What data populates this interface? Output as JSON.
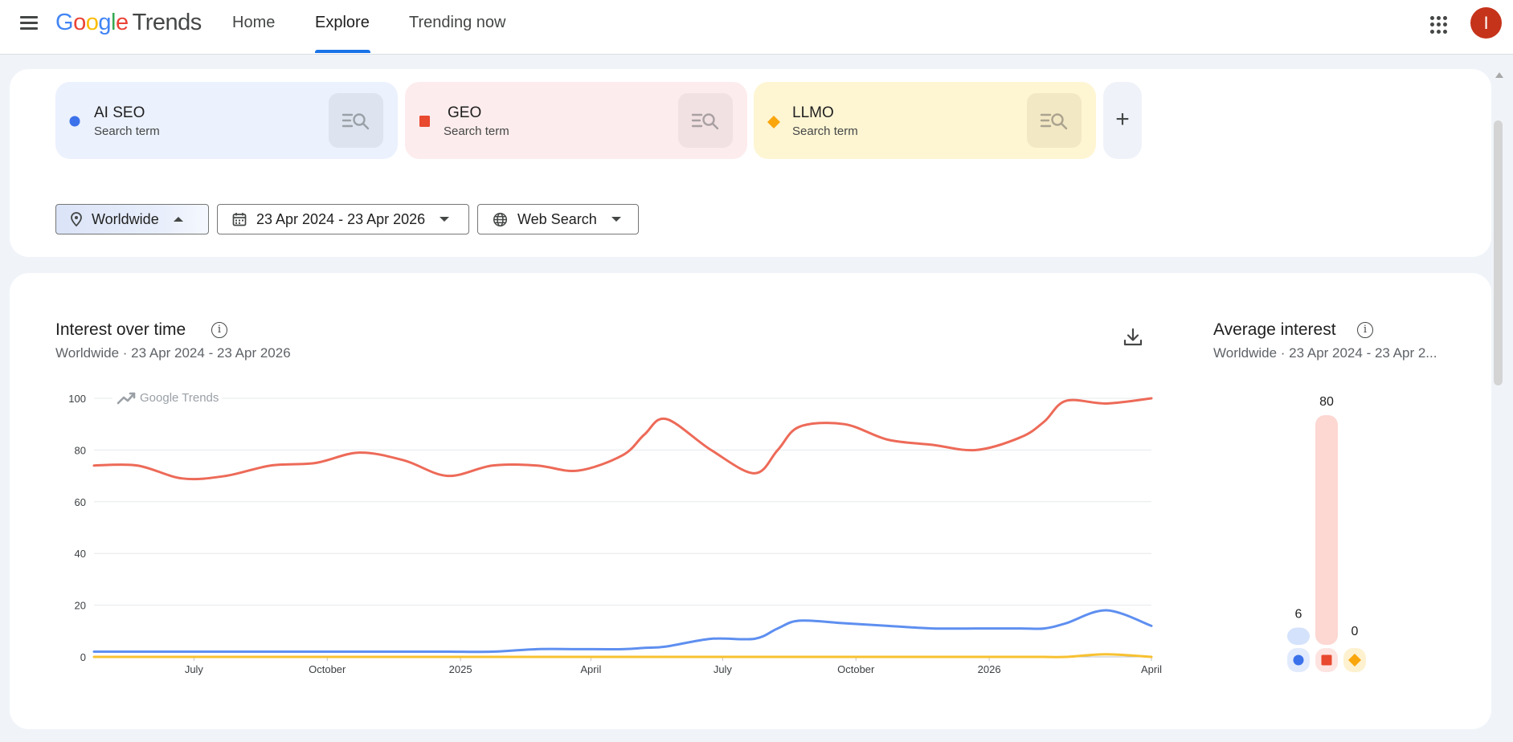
{
  "header": {
    "logo_google": "Google",
    "logo_product": "Trends",
    "tabs": [
      {
        "label": "Home",
        "active": false
      },
      {
        "label": "Explore",
        "active": true
      },
      {
        "label": "Trending now",
        "active": false
      }
    ],
    "avatar_letter": "I",
    "accent_color": "#1a73e8"
  },
  "terms": [
    {
      "name": "AI SEO",
      "type": "Search term",
      "color": "#3b71ea",
      "marker": "circle"
    },
    {
      "name": "GEO",
      "type": "Search term",
      "color": "#e8492f",
      "marker": "square"
    },
    {
      "name": "LLMO",
      "type": "Search term",
      "color": "#f9a50c",
      "marker": "diamond"
    }
  ],
  "add_term_label": "+",
  "filters": {
    "region": "Worldwide",
    "date_range": "23 Apr 2024 - 23 Apr 2026",
    "property": "Web Search"
  },
  "interest_over_time": {
    "title": "Interest over time",
    "subtitle": "Worldwide  ·  23 Apr 2024 - 23 Apr 2026",
    "watermark": "Google Trends"
  },
  "average_interest": {
    "title": "Average interest",
    "subtitle": "Worldwide  ·  23 Apr 2024 - 23 Apr 2...",
    "values": [
      6,
      80,
      0
    ]
  },
  "chart_data": [
    {
      "type": "line",
      "ylim": [
        0,
        100
      ],
      "y_ticks": [
        0,
        20,
        40,
        60,
        80,
        100
      ],
      "x_ticks": [
        "July",
        "October",
        "2025",
        "April",
        "July",
        "October",
        "2026",
        "April"
      ],
      "x": [
        "2024-04-23",
        "2024-05-23",
        "2024-06-23",
        "2024-07-23",
        "2024-08-23",
        "2024-09-23",
        "2024-10-23",
        "2024-11-23",
        "2024-12-23",
        "2025-01-23",
        "2025-02-23",
        "2025-03-23",
        "2025-04-23",
        "2025-05-08",
        "2025-05-23",
        "2025-06-23",
        "2025-07-23",
        "2025-08-08",
        "2025-08-23",
        "2025-09-23",
        "2025-10-23",
        "2025-11-23",
        "2025-12-23",
        "2026-01-23",
        "2026-02-08",
        "2026-02-23",
        "2026-03-23",
        "2026-04-23"
      ],
      "series": [
        {
          "name": "AI SEO",
          "color": "#5e8ff0",
          "values": [
            2,
            2,
            2,
            2,
            2,
            2,
            2,
            2,
            2,
            2,
            3,
            3,
            3,
            3.5,
            4,
            7,
            7,
            11,
            14,
            13,
            12,
            11,
            11,
            11,
            11,
            13,
            18,
            12
          ]
        },
        {
          "name": "GEO",
          "color": "#ed6a58",
          "values": [
            74,
            74,
            69,
            70,
            74,
            75,
            79,
            76,
            70,
            74,
            74,
            72,
            78,
            86,
            92,
            80,
            71,
            80,
            89,
            90,
            84,
            82,
            80,
            85,
            91,
            99,
            98,
            100
          ]
        },
        {
          "name": "LLMO",
          "color": "#f7c130",
          "values": [
            0,
            0,
            0,
            0,
            0,
            0,
            0,
            0,
            0,
            0,
            0,
            0,
            0,
            0,
            0,
            0,
            0,
            0,
            0,
            0,
            0,
            0,
            0,
            0,
            0,
            0,
            1,
            0
          ]
        }
      ]
    },
    {
      "type": "bar",
      "categories": [
        "AI SEO",
        "GEO",
        "LLMO"
      ],
      "values": [
        6,
        80,
        0
      ],
      "ylim": [
        0,
        80
      ]
    }
  ]
}
